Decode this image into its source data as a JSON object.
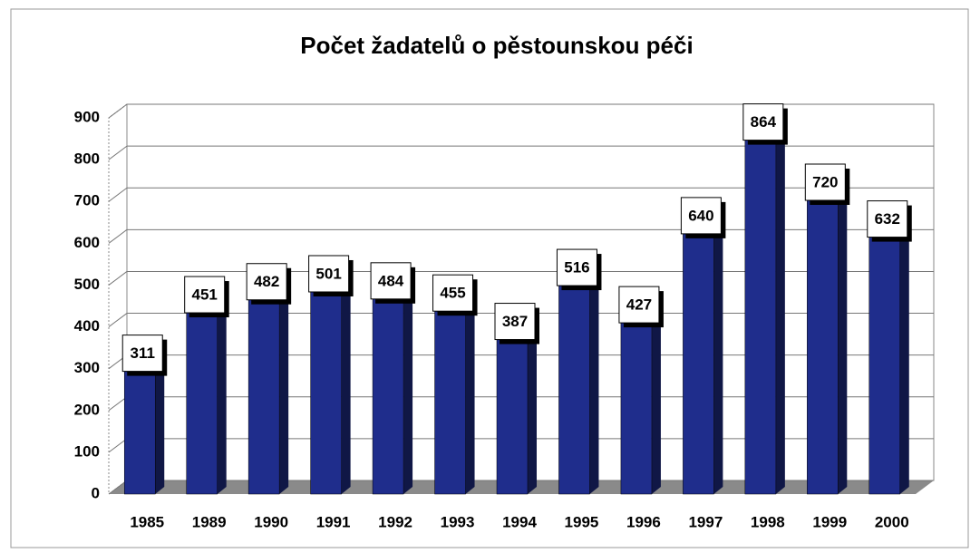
{
  "chart_data": {
    "type": "bar",
    "title": "Počet žadatelů o pěstounskou péči",
    "categories": [
      "1985",
      "1989",
      "1990",
      "1991",
      "1992",
      "1993",
      "1994",
      "1995",
      "1996",
      "1997",
      "1998",
      "1999",
      "2000"
    ],
    "values": [
      311,
      451,
      482,
      501,
      484,
      455,
      387,
      516,
      427,
      640,
      864,
      720,
      632
    ],
    "color": "#1f2d8c",
    "ylim": [
      0,
      900
    ],
    "yticks": [
      0,
      100,
      200,
      300,
      400,
      500,
      600,
      700,
      800,
      900
    ],
    "grid": true
  }
}
